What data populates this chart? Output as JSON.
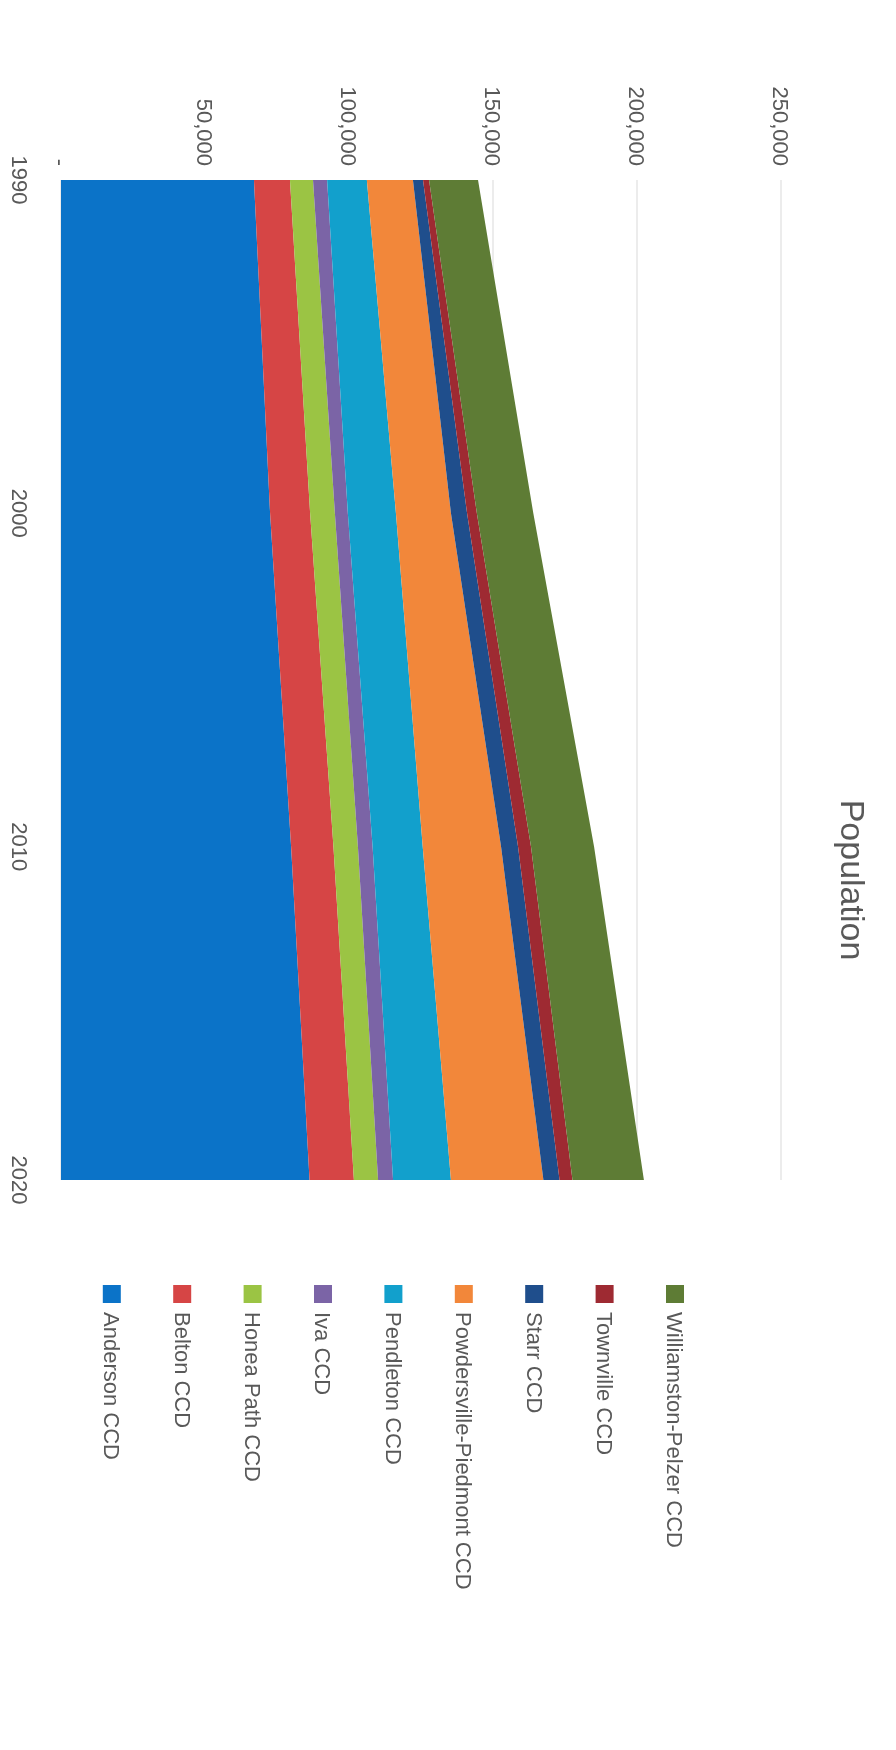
{
  "chart_data": {
    "type": "area",
    "stacked": true,
    "title": "Population",
    "orientation": "horizontal",
    "categories": [
      "1990",
      "2000",
      "2010",
      "2020"
    ],
    "xlim": [
      0,
      250000
    ],
    "xticks": [
      {
        "value": 0,
        "label": "-"
      },
      {
        "value": 50000,
        "label": "50,000"
      },
      {
        "value": 100000,
        "label": "100,000"
      },
      {
        "value": 150000,
        "label": "150,000"
      },
      {
        "value": 200000,
        "label": "200,000"
      },
      {
        "value": 250000,
        "label": "250,000"
      }
    ],
    "grid": "x",
    "legend": "bottom",
    "series": [
      {
        "name": "Anderson CCD",
        "color": "#0b73c8",
        "values": [
          67000,
          72600,
          79900,
          86300
        ]
      },
      {
        "name": "Belton CCD",
        "color": "#d64545",
        "values": [
          12500,
          13900,
          14700,
          15400
        ]
      },
      {
        "name": "Honea Path CCD",
        "color": "#9bc444",
        "values": [
          8000,
          8600,
          8500,
          8400
        ]
      },
      {
        "name": "Iva CCD",
        "color": "#7b64a6",
        "values": [
          4900,
          4500,
          5100,
          5200
        ]
      },
      {
        "name": "Pendleton CCD",
        "color": "#12a0cc",
        "values": [
          13800,
          16700,
          17400,
          20100
        ]
      },
      {
        "name": "Powdersville-Piedmont CCD",
        "color": "#f2873a",
        "values": [
          16000,
          19100,
          27200,
          32100
        ]
      },
      {
        "name": "Starr CCD",
        "color": "#1f4e8c",
        "values": [
          3500,
          5600,
          5900,
          5600
        ]
      },
      {
        "name": "Townville CCD",
        "color": "#9e2a32",
        "values": [
          2100,
          3400,
          4500,
          4500
        ]
      },
      {
        "name": "Williamston-Pelzer CCD",
        "color": "#5e7c35",
        "values": [
          17000,
          19600,
          21900,
          24800
        ]
      }
    ]
  }
}
